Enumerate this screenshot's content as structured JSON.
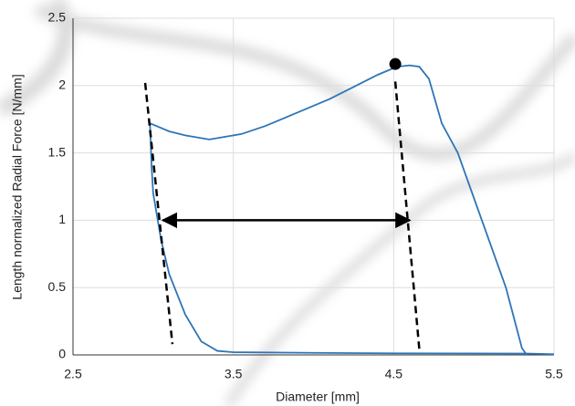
{
  "chart_data": {
    "type": "line",
    "xlabel": "Diameter [mm]",
    "ylabel": "Length normalized Radial Force [N/mm]",
    "xlim": [
      2.5,
      5.5
    ],
    "xticks": [
      2.5,
      3.5,
      4.5,
      5.5
    ],
    "ylim": [
      0,
      2.5
    ],
    "yticks": [
      0,
      0.5,
      1,
      1.5,
      2,
      2.5
    ],
    "grid": true,
    "series": [
      {
        "color": "#2e75b6",
        "dashed": false,
        "x": [
          5.5,
          5.33,
          4.5,
          4.0,
          3.5,
          3.4,
          3.3,
          3.2,
          3.1,
          3.05,
          3.0,
          2.99,
          2.98,
          3.02,
          3.1,
          3.2,
          3.35,
          3.45,
          3.55,
          3.7,
          3.9,
          4.1,
          4.25,
          4.4,
          4.52,
          4.6,
          4.66,
          4.72,
          4.8,
          4.9,
          5.05,
          5.2,
          5.3,
          5.33
        ],
        "values": [
          0.005,
          0.01,
          0.012,
          0.015,
          0.02,
          0.03,
          0.1,
          0.3,
          0.6,
          0.85,
          1.2,
          1.4,
          1.72,
          1.7,
          1.66,
          1.63,
          1.6,
          1.62,
          1.64,
          1.7,
          1.8,
          1.9,
          1.99,
          2.08,
          2.14,
          2.15,
          2.14,
          2.05,
          1.72,
          1.5,
          1.0,
          0.5,
          0.05,
          0.0
        ]
      },
      {
        "color": "#000000",
        "dashed": true,
        "x": [
          2.95,
          3.12
        ],
        "values": [
          2.02,
          0.08
        ]
      },
      {
        "color": "#000000",
        "dashed": true,
        "x": [
          4.51,
          4.66
        ],
        "values": [
          2.03,
          0.04
        ]
      }
    ],
    "points": [
      {
        "x": 4.51,
        "y": 2.16,
        "color": "#000000"
      }
    ],
    "arrows": [
      {
        "x": [
          3.06,
          4.6
        ],
        "y": 1.0,
        "color": "#000000"
      }
    ]
  }
}
